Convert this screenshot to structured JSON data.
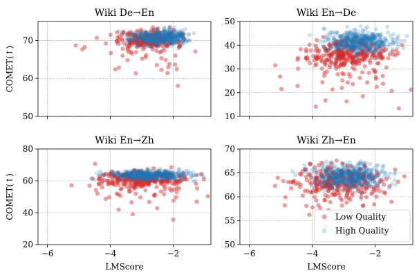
{
  "chart_data": [
    {
      "type": "scatter",
      "title": "Wiki De→En",
      "xlabel": "",
      "ylabel": "COMET(↑)",
      "xlim": [
        -6.3,
        -0.8
      ],
      "ylim": [
        50,
        75
      ],
      "xticks": [
        -6,
        -4,
        -2
      ],
      "yticks": [
        50,
        60,
        70
      ],
      "xticklabels_visible": false,
      "grid": true,
      "series": [
        {
          "name": "Low Quality",
          "color": "#d62728",
          "summary": {
            "center": [
              -2.8,
              70.3
            ],
            "main_spread": [
              0.5,
              1.2
            ],
            "outlier_spread": [
              1.0,
              5.0
            ],
            "count": 260
          }
        },
        {
          "name": "High Quality",
          "color": "#1f77b4",
          "summary": {
            "center": [
              -2.4,
              70.8
            ],
            "main_spread": [
              0.45,
              1.0
            ],
            "count": 420
          }
        }
      ]
    },
    {
      "type": "scatter",
      "title": "Wiki En→De",
      "xlabel": "",
      "ylabel": "",
      "xlim": [
        -6.3,
        -0.8
      ],
      "ylim": [
        10,
        50
      ],
      "xticks": [
        -6,
        -4,
        -2
      ],
      "yticks": [
        10,
        20,
        30,
        40,
        50
      ],
      "xticklabels_visible": false,
      "grid": true,
      "series": [
        {
          "name": "Low Quality",
          "color": "#d62728",
          "summary": {
            "center": [
              -2.9,
              36.5
            ],
            "main_spread": [
              0.6,
              3.0
            ],
            "outlier_spread": [
              1.0,
              8.0
            ],
            "count": 320
          }
        },
        {
          "name": "High Quality",
          "color": "#1f77b4",
          "summary": {
            "center": [
              -2.5,
              41.5
            ],
            "main_spread": [
              0.55,
              2.5
            ],
            "count": 460
          }
        }
      ]
    },
    {
      "type": "scatter",
      "title": "Wiki En→Zh",
      "xlabel": "LMScore",
      "ylabel": "COMET(↑)",
      "xlim": [
        -6.3,
        -0.8
      ],
      "ylim": [
        20,
        80
      ],
      "xticks": [
        -6,
        -4,
        -2
      ],
      "yticks": [
        20,
        40,
        60,
        80
      ],
      "xticklabels_visible": true,
      "grid": true,
      "series": [
        {
          "name": "Low Quality",
          "color": "#d62728",
          "summary": {
            "center": [
              -3.0,
              61.5
            ],
            "main_spread": [
              0.7,
              2.5
            ],
            "outlier_spread": [
              1.0,
              9.0
            ],
            "count": 320
          }
        },
        {
          "name": "High Quality",
          "color": "#1f77b4",
          "summary": {
            "center": [
              -2.7,
              63.5
            ],
            "main_spread": [
              0.6,
              1.5
            ],
            "count": 460
          }
        }
      ]
    },
    {
      "type": "scatter",
      "title": "Wiki Zh→En",
      "xlabel": "LMScore",
      "ylabel": "",
      "xlim": [
        -6.3,
        -0.8
      ],
      "ylim": [
        50,
        70
      ],
      "xticks": [
        -6,
        -4,
        -2
      ],
      "yticks": [
        50,
        55,
        60,
        65,
        70
      ],
      "xticklabels_visible": true,
      "grid": true,
      "legend": {
        "placement": "bottom-right",
        "entries": [
          "Low Quality",
          "High Quality"
        ]
      },
      "series": [
        {
          "name": "Low Quality",
          "color": "#d62728",
          "summary": {
            "center": [
              -3.1,
              63.5
            ],
            "main_spread": [
              0.7,
              1.6
            ],
            "outlier_spread": [
              1.0,
              4.0
            ],
            "count": 320
          }
        },
        {
          "name": "High Quality",
          "color": "#1f77b4",
          "summary": {
            "center": [
              -2.8,
              64.3
            ],
            "main_spread": [
              0.6,
              1.3
            ],
            "count": 460
          }
        }
      ]
    }
  ]
}
